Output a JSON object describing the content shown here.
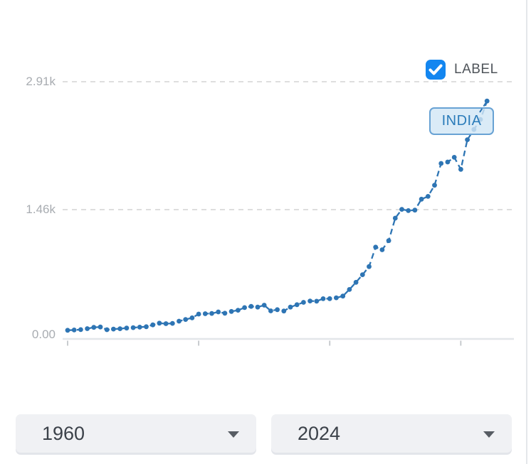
{
  "chart": {
    "legend_label": "LABEL",
    "legend_checked": true,
    "series_label": "INDIA"
  },
  "controls": {
    "start_year": "1960",
    "end_year": "2024"
  },
  "colors": {
    "series_blue": "#2e75b4",
    "checkbox_blue": "#1386f0",
    "label_box_bg": "#d2e6f5",
    "label_box_border": "#68a2d4",
    "label_box_text": "#2b7cba",
    "gridline": "#d4d4d4",
    "axis_line": "#e3e6e9",
    "tick_label": "#a8acb1"
  },
  "chart_data": {
    "type": "line",
    "title": "",
    "xlabel": "",
    "ylabel": "",
    "xlim": [
      1960,
      2024
    ],
    "ylim": [
      0,
      2910
    ],
    "grid": "horizontal-dashed",
    "legend_position": "top-right",
    "line_style": "dashed",
    "point_style": "dot",
    "yticks": [
      {
        "label": "0.00",
        "value": 0
      },
      {
        "label": "1.46k",
        "value": 1455
      },
      {
        "label": "2.91k",
        "value": 2910
      }
    ],
    "xtick_years": [
      1960,
      1980,
      2000,
      2020
    ],
    "series": [
      {
        "name": "INDIA",
        "color": "#2e75b4",
        "x": [
          1960,
          1961,
          1962,
          1963,
          1964,
          1965,
          1966,
          1967,
          1968,
          1969,
          1970,
          1971,
          1972,
          1973,
          1974,
          1975,
          1976,
          1977,
          1978,
          1979,
          1980,
          1981,
          1982,
          1983,
          1984,
          1985,
          1986,
          1987,
          1988,
          1989,
          1990,
          1991,
          1992,
          1993,
          1994,
          1995,
          1996,
          1997,
          1998,
          1999,
          2000,
          2001,
          2002,
          2003,
          2004,
          2005,
          2006,
          2007,
          2008,
          2009,
          2010,
          2011,
          2012,
          2013,
          2014,
          2015,
          2016,
          2017,
          2018,
          2019,
          2020,
          2021,
          2022,
          2023,
          2024
        ],
        "values": [
          82.2,
          85.4,
          89.9,
          101.1,
          115.5,
          119.3,
          89.0,
          96.3,
          99.9,
          107.6,
          112.4,
          118.3,
          122.9,
          143.8,
          163.6,
          158.0,
          161.1,
          186.2,
          205.7,
          224.0,
          266.6,
          270.5,
          274.2,
          291.2,
          276.7,
          296.4,
          310.5,
          340.5,
          354.1,
          346.1,
          367.6,
          303.1,
          316.9,
          301.2,
          346.1,
          373.8,
          399.9,
          415.5,
          413.3,
          441.1,
          442.0,
          451.6,
          470.9,
          546.7,
          627.8,
          714.9,
          806.8,
          1028.3,
          998.5,
          1101.9,
          1357.6,
          1458.1,
          1443.9,
          1449.6,
          1573.9,
          1605.6,
          1732.6,
          1980.7,
          1996.9,
          2050.2,
          1913.2,
          2250.2,
          2366.4,
          2480.8,
          2690.0
        ]
      }
    ]
  }
}
